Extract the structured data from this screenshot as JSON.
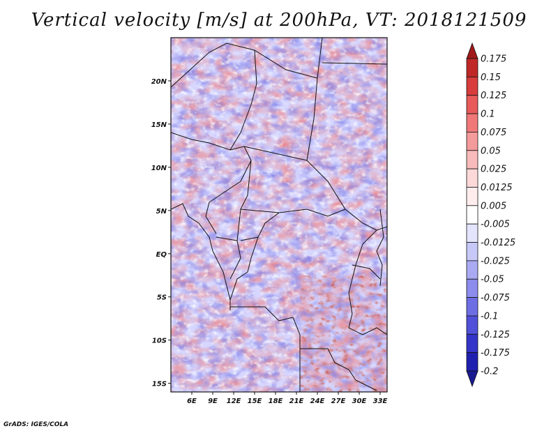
{
  "title": "Vertical velocity [m/s] at 200hPa, VT: 2018121509",
  "credit": "GrADS: IGES/COLA",
  "map": {
    "lon_range": [
      3,
      34
    ],
    "lat_range": [
      -16,
      25
    ],
    "lon_ticks": [
      "6E",
      "9E",
      "12E",
      "15E",
      "18E",
      "21E",
      "24E",
      "27E",
      "30E",
      "33E"
    ],
    "lat_ticks": [
      "20N",
      "15N",
      "10N",
      "5N",
      "EQ",
      "5S",
      "10S",
      "15S"
    ],
    "field_colors": {
      "positive_strong": "#b22222",
      "positive_mid": "#f08080",
      "positive_weak": "#ffd6d6",
      "neutral": "#ffffff",
      "negative_weak": "#d6d6ff",
      "negative_mid": "#8080e8",
      "negative_strong": "#2020b0"
    }
  },
  "colorbar": {
    "labels": [
      "0.175",
      "0.15",
      "0.125",
      "0.1",
      "0.075",
      "0.05",
      "0.025",
      "0.0125",
      "0.005",
      "-0.005",
      "-0.0125",
      "-0.025",
      "-0.05",
      "-0.075",
      "-0.1",
      "-0.125",
      "-0.175",
      "-0.2"
    ],
    "colors": [
      "#a01818",
      "#c02828",
      "#d83c3c",
      "#e85a5a",
      "#f07878",
      "#f49a9a",
      "#f8baba",
      "#fcd8d8",
      "#ffeded",
      "#ffffff",
      "#e4e4fc",
      "#c8c8f8",
      "#aaaaf2",
      "#8c8cec",
      "#6e6ee4",
      "#5050d8",
      "#3434c8",
      "#2020b0",
      "#1a1a90"
    ]
  }
}
